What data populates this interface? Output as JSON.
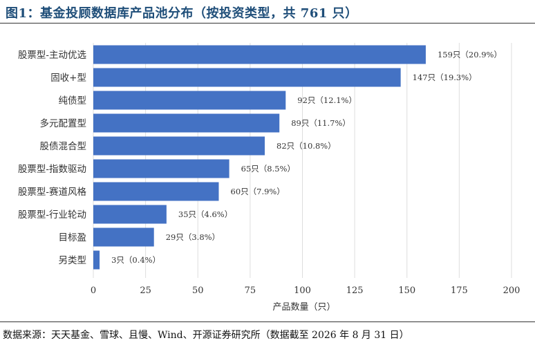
{
  "header": {
    "title": "图1：基金投顾数据库产品池分布（按投资类型，共 761 只）"
  },
  "footer": {
    "source": "数据来源：天天基金、雪球、且慢、Wind、开源证券研究所（数据截至 2026 年 8 月 31 日）"
  },
  "chart_data": {
    "type": "bar",
    "orientation": "horizontal",
    "categories": [
      "股票型-主动优选",
      "固收+型",
      "纯债型",
      "多元配置型",
      "股债混合型",
      "股票型-指数驱动",
      "股票型-赛道风格",
      "股票型-行业轮动",
      "目标盈",
      "另类型"
    ],
    "values": [
      159,
      147,
      92,
      89,
      82,
      65,
      60,
      35,
      29,
      3
    ],
    "data_labels": [
      "159只（20.9%）",
      "147只（19.3%）",
      "92只（12.1%）",
      "89只（11.7%）",
      "82只（10.8%）",
      "65只（8.5%）",
      "60只（7.9%）",
      "35只（4.6%）",
      "29只（3.8%）",
      "3只（0.4%）"
    ],
    "xlabel": "产品数量（只）",
    "xlim": [
      0,
      200
    ],
    "xticks": [
      0,
      25,
      50,
      75,
      100,
      125,
      150,
      175,
      200
    ],
    "bar_color": "#4472c4",
    "grid": "x",
    "legend": "none"
  }
}
